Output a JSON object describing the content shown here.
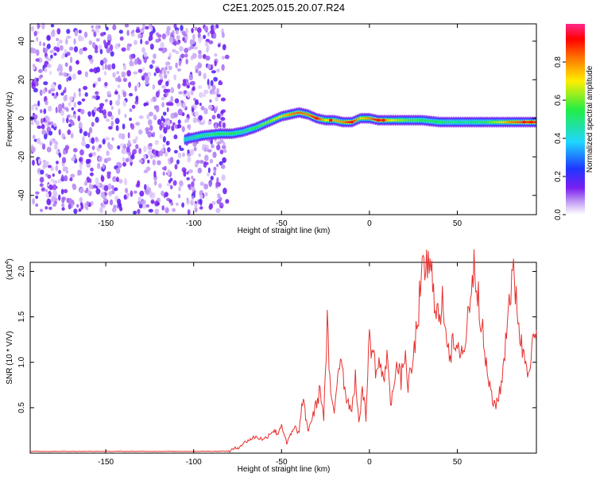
{
  "figure": {
    "title": "C2E1.2025.015.20.07.R24"
  },
  "chart_data": [
    {
      "type": "heatmap",
      "xlabel": "Height of straight line (km)",
      "ylabel": "Frequency (Hz)",
      "xlim": [
        -193,
        95
      ],
      "ylim": [
        -50,
        49
      ],
      "xticks": [
        -150,
        -100,
        -50,
        0,
        50
      ],
      "yticks": [
        -40,
        -20,
        0,
        20,
        40
      ],
      "colorbar": {
        "label": "Normalized spectral amplitude",
        "range": [
          0,
          1
        ],
        "ticks": [
          0.0,
          0.2,
          0.4,
          0.6,
          0.8
        ],
        "tick_labels": [
          "0.0",
          "0.2",
          "0.4",
          "0.6",
          "0.8"
        ],
        "colormap": [
          "#ffffff",
          "#c9a8f5",
          "#7a1ff0",
          "#1f36ff",
          "#1fd6ff",
          "#22ee44",
          "#ffee00",
          "#ff7700",
          "#ff0000",
          "#ff2a8a"
        ]
      },
      "noise_region_x": [
        -193,
        -80
      ],
      "signal_track": {
        "x": [
          -105,
          -95,
          -85,
          -78,
          -72,
          -65,
          -60,
          -55,
          -50,
          -45,
          -40,
          -35,
          -30,
          -25,
          -20,
          -15,
          -10,
          -5,
          0,
          5,
          10,
          20,
          30,
          40,
          50,
          60,
          70,
          80,
          90,
          95
        ],
        "freq": [
          -11,
          -9,
          -8,
          -8,
          -7,
          -5,
          -3,
          -1,
          1,
          2,
          3,
          2,
          0,
          -1,
          -1,
          -2,
          -2,
          0,
          0,
          -1,
          -1,
          -1,
          -1,
          -2,
          -2,
          -2,
          -2,
          -2,
          -2,
          -2
        ],
        "amplitude": [
          0.45,
          0.5,
          0.55,
          0.55,
          0.5,
          0.55,
          0.6,
          0.65,
          0.7,
          0.8,
          0.85,
          0.8,
          0.95,
          0.7,
          0.75,
          0.8,
          0.95,
          0.7,
          0.8,
          0.95,
          0.75,
          0.6,
          0.55,
          0.55,
          0.5,
          0.5,
          0.6,
          0.8,
          0.9,
          0.9
        ]
      }
    },
    {
      "type": "line",
      "xlabel": "Height of straight line (km)",
      "ylabel": "SNR (10 * V/V)",
      "multiplier_label": "(x10",
      "multiplier_exp": "4",
      "xlim": [
        -193,
        95
      ],
      "ylim": [
        0,
        21000
      ],
      "xticks": [
        -150,
        -100,
        -50,
        0,
        50
      ],
      "yticks": [
        5000,
        10000,
        15000,
        20000
      ],
      "ytick_labels": [
        "0.5",
        "1.0",
        "1.5",
        "2.0"
      ],
      "color": "#e8312f",
      "series": [
        {
          "x": [
            -193,
            -150,
            -100,
            -80,
            -75,
            -70,
            -65,
            -60,
            -55,
            -52,
            -50,
            -47,
            -45,
            -42,
            -40,
            -38,
            -35,
            -32,
            -30,
            -28,
            -26,
            -24,
            -22,
            -20,
            -18,
            -16,
            -14,
            -12,
            -10,
            -8,
            -6,
            -4,
            -2,
            0,
            2,
            4,
            6,
            8,
            10,
            12,
            14,
            16,
            18,
            20,
            22,
            24,
            26,
            28,
            30,
            32,
            34,
            36,
            38,
            40,
            42,
            44,
            46,
            48,
            50,
            52,
            54,
            56,
            58,
            60,
            62,
            64,
            66,
            68,
            70,
            72,
            74,
            76,
            78,
            80,
            82,
            84,
            86,
            88,
            90,
            92,
            95
          ],
          "y": [
            200,
            200,
            200,
            220,
            600,
            1300,
            1800,
            1500,
            2500,
            2200,
            3200,
            1000,
            2000,
            2800,
            2200,
            6000,
            2500,
            4200,
            5500,
            7000,
            4000,
            14000,
            6000,
            4500,
            9000,
            11000,
            7000,
            5500,
            5000,
            8500,
            3000,
            7500,
            4000,
            13000,
            11000,
            9000,
            10000,
            7500,
            11500,
            5000,
            8500,
            9500,
            8000,
            11000,
            7500,
            9000,
            12000,
            16000,
            19000,
            21000,
            20000,
            19000,
            16500,
            14000,
            17000,
            13000,
            11000,
            12000,
            10500,
            12000,
            11000,
            15000,
            19000,
            20500,
            18000,
            14000,
            10000,
            8000,
            5500,
            5500,
            6500,
            9000,
            14000,
            18000,
            19000,
            17000,
            12000,
            11000,
            9500,
            11000,
            13500
          ]
        }
      ]
    }
  ]
}
